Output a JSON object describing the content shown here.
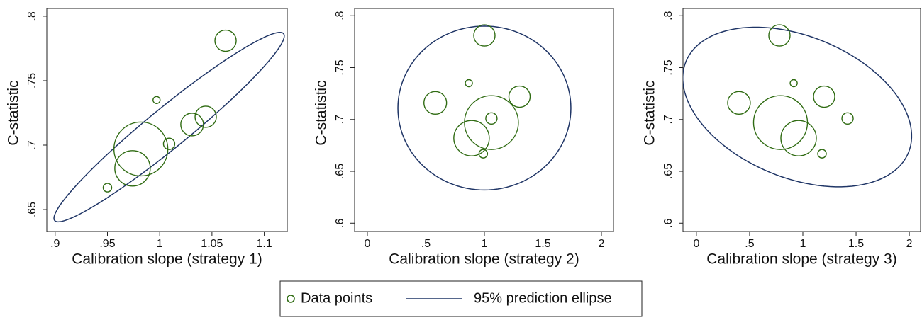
{
  "chart_data": [
    {
      "type": "bubble",
      "x_label": "Calibration slope (strategy 1)",
      "y_label": "C-statistic",
      "x": [
        1.063,
        0.997,
        1.044,
        1.031,
        1.009,
        0.982,
        0.974,
        0.95
      ],
      "series": [
        {
          "name": "Data points",
          "color": "#2f6b12",
          "values": [
            0.781,
            0.735,
            0.722,
            0.716,
            0.701,
            0.697,
            0.682,
            0.667
          ],
          "sizes": [
            225,
            25,
            225,
            256,
            64,
            1444,
            625,
            36
          ]
        }
      ],
      "ellipse": {
        "name": "95% prediction ellipse",
        "color": "#1f3566",
        "center": [
          1.009,
          0.714
        ],
        "axis1": [
          0.1095,
          0.0725
        ],
        "axis2": [
          0.0122,
          -0.012
        ]
      },
      "xlim": [
        0.892,
        1.122
      ],
      "ylim": [
        0.633,
        0.806
      ],
      "xticks": [
        {
          "value": 0.9,
          "label": ".9"
        },
        {
          "value": 0.95,
          "label": ".95"
        },
        1,
        1.05,
        1.1
      ],
      "yticks": [
        {
          "value": 0.65,
          "label": ".65"
        },
        {
          "value": 0.7,
          "label": ".7"
        },
        {
          "value": 0.75,
          "label": ".75"
        },
        {
          "value": 0.8,
          "label": ".8"
        }
      ]
    },
    {
      "type": "bubble",
      "x_label": "Calibration slope (strategy 2)",
      "y_label": "C-statistic",
      "x": [
        1.0,
        0.867,
        1.3,
        0.58,
        1.06,
        1.06,
        0.89,
        0.99
      ],
      "series": [
        {
          "name": "Data points",
          "color": "#2f6b12",
          "values": [
            0.781,
            0.735,
            0.722,
            0.716,
            0.701,
            0.697,
            0.682,
            0.667
          ],
          "sizes": [
            225,
            25,
            225,
            256,
            64,
            1444,
            625,
            36
          ]
        }
      ],
      "ellipse": {
        "name": "95% prediction ellipse",
        "color": "#1f3566",
        "center": [
          1.0,
          0.711
        ],
        "axis1": [
          0.739,
          0
        ],
        "axis2": [
          0,
          0.079
        ]
      },
      "xlim": [
        -0.109,
        2.103
      ],
      "ylim": [
        0.592,
        0.807
      ],
      "xticks": [
        0,
        {
          "value": 0.5,
          "label": ".5"
        },
        1,
        1.5,
        2
      ],
      "yticks": [
        {
          "value": 0.6,
          "label": ".6"
        },
        {
          "value": 0.65,
          "label": ".65"
        },
        {
          "value": 0.7,
          "label": ".7"
        },
        {
          "value": 0.75,
          "label": ".75"
        },
        {
          "value": 0.8,
          "label": ".8"
        }
      ]
    },
    {
      "type": "bubble",
      "x_label": "Calibration slope (strategy 3)",
      "y_label": "C-statistic",
      "x": [
        0.78,
        0.914,
        1.2,
        0.4,
        1.42,
        0.79,
        0.96,
        1.18
      ],
      "series": [
        {
          "name": "Data points",
          "color": "#2f6b12",
          "values": [
            0.781,
            0.735,
            0.722,
            0.716,
            0.701,
            0.697,
            0.682,
            0.667
          ],
          "sizes": [
            225,
            25,
            225,
            256,
            64,
            1444,
            625,
            36
          ]
        }
      ],
      "ellipse": {
        "name": "95% prediction ellipse",
        "color": "#1f3566",
        "center": [
          0.947,
          0.712
        ],
        "axis1": [
          1.046,
          -0.0437
        ],
        "axis2": [
          -0.248,
          -0.0633
        ]
      },
      "xlim": [
        -0.126,
        2.106
      ],
      "ylim": [
        0.592,
        0.807
      ],
      "xticks": [
        0,
        {
          "value": 0.5,
          "label": ".5"
        },
        1,
        1.5,
        2
      ],
      "yticks": [
        {
          "value": 0.6,
          "label": ".6"
        },
        {
          "value": 0.65,
          "label": ".65"
        },
        {
          "value": 0.7,
          "label": ".7"
        },
        {
          "value": 0.75,
          "label": ".75"
        },
        {
          "value": 0.8,
          "label": ".8"
        }
      ]
    }
  ]
}
